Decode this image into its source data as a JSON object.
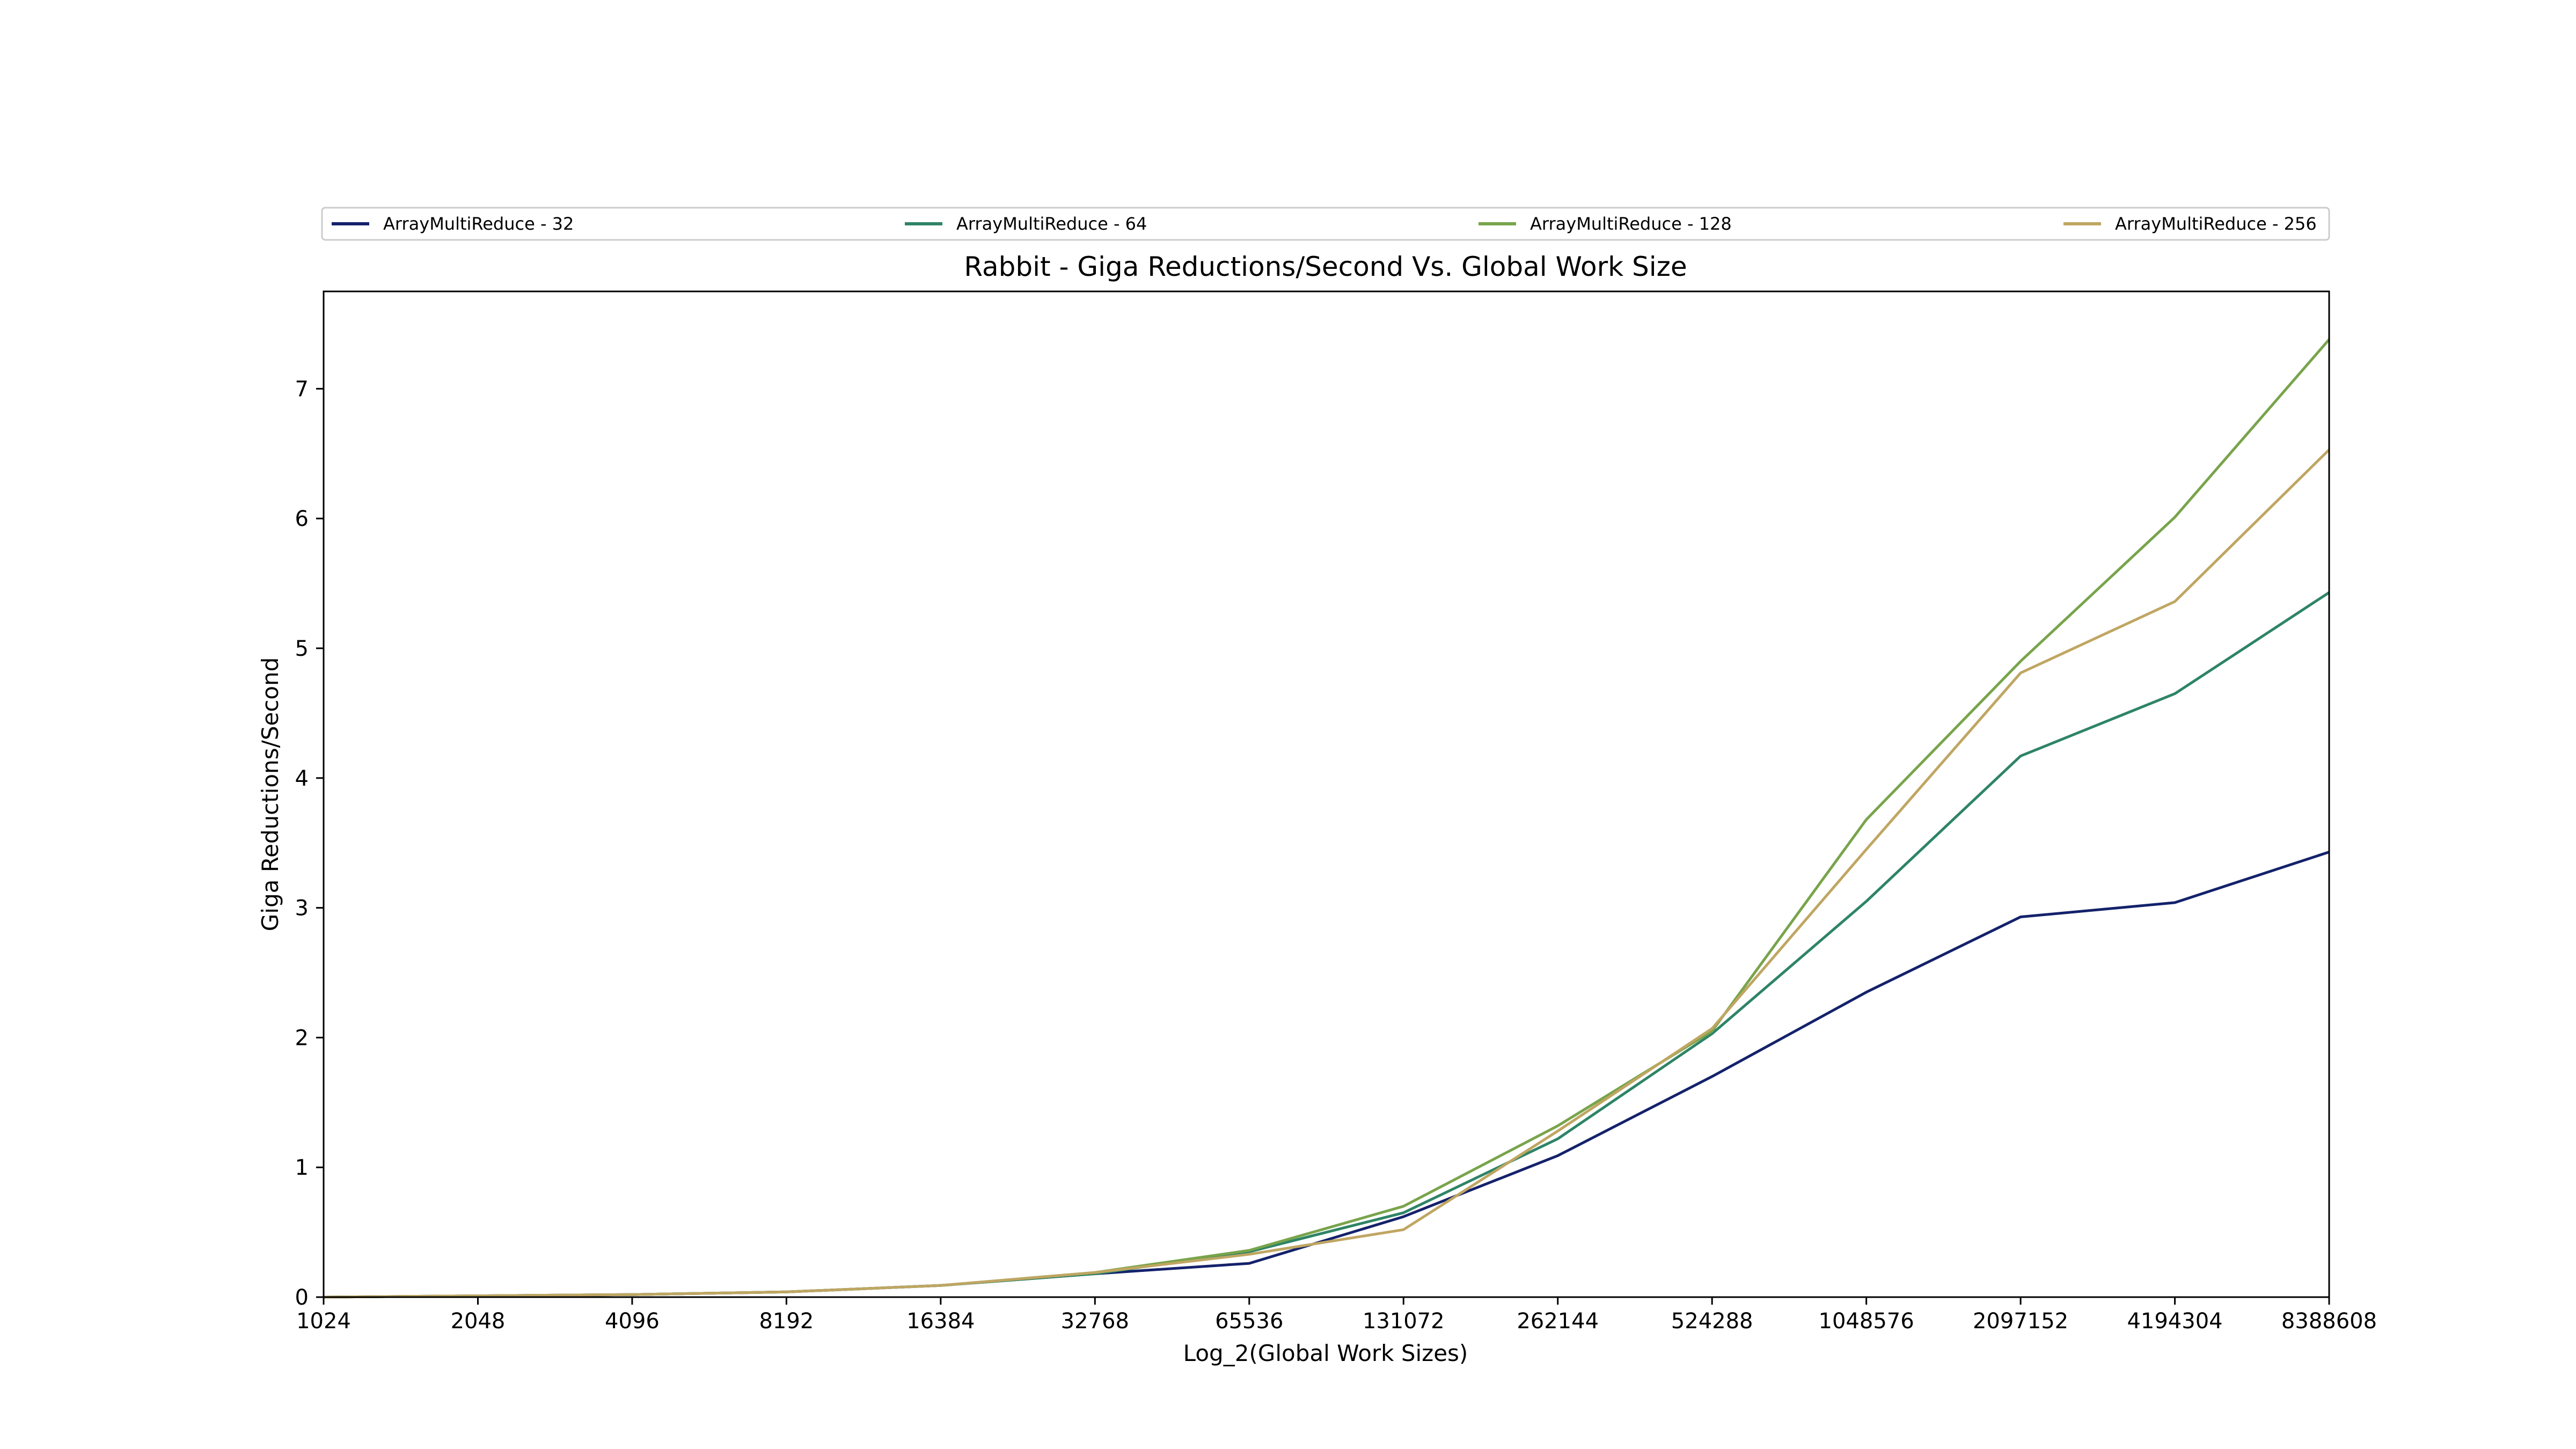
{
  "chart_data": {
    "type": "line",
    "title": "Rabbit - Giga Reductions/Second Vs. Global Work Size",
    "xlabel": "Log_2(Global Work Sizes)",
    "ylabel": "Giga Reductions/Second",
    "x": [
      "1024",
      "2048",
      "4096",
      "8192",
      "16384",
      "32768",
      "65536",
      "131072",
      "262144",
      "524288",
      "1048576",
      "2097152",
      "4194304",
      "8388608"
    ],
    "ylim": [
      0,
      7.75
    ],
    "yticks": [
      "0",
      "1",
      "2",
      "3",
      "4",
      "5",
      "6",
      "7"
    ],
    "grid": false,
    "legend_position": "top",
    "series": [
      {
        "name": "ArrayMultiReduce - 32",
        "color": "#14226b",
        "values": [
          0.0,
          0.01,
          0.02,
          0.04,
          0.09,
          0.18,
          0.26,
          0.62,
          1.09,
          1.7,
          2.35,
          2.93,
          3.04,
          3.43
        ]
      },
      {
        "name": "ArrayMultiReduce - 64",
        "color": "#2e8466",
        "values": [
          0.0,
          0.01,
          0.02,
          0.04,
          0.09,
          0.18,
          0.35,
          0.65,
          1.22,
          2.03,
          3.05,
          4.17,
          4.65,
          5.43
        ]
      },
      {
        "name": "ArrayMultiReduce - 128",
        "color": "#78a44b",
        "values": [
          0.0,
          0.01,
          0.02,
          0.04,
          0.09,
          0.19,
          0.36,
          0.7,
          1.32,
          2.05,
          3.68,
          4.9,
          6.01,
          7.38
        ]
      },
      {
        "name": "ArrayMultiReduce - 256",
        "color": "#bfa662",
        "values": [
          0.0,
          0.01,
          0.02,
          0.04,
          0.09,
          0.19,
          0.33,
          0.52,
          1.28,
          2.07,
          3.45,
          4.81,
          5.36,
          6.53
        ]
      }
    ]
  }
}
